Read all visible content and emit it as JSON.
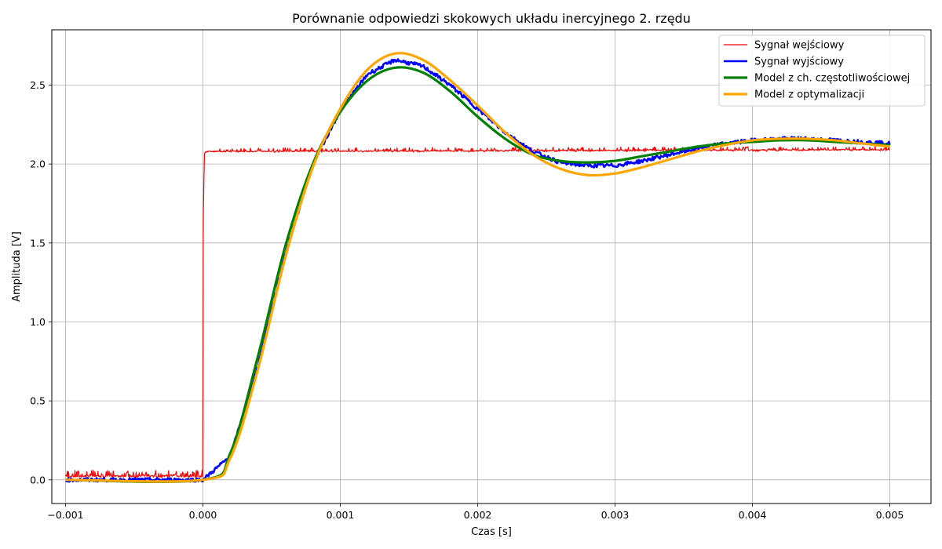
{
  "chart_data": {
    "type": "line",
    "title": "Porównanie odpowiedzi skokowych układu inercyjnego 2. rzędu",
    "xlabel": "Czas [s]",
    "ylabel": "Amplituda [V]",
    "xlim": [
      -0.0011,
      0.0053
    ],
    "ylim": [
      -0.15,
      2.85
    ],
    "xticks": [
      -0.001,
      0.0,
      0.001,
      0.002,
      0.003,
      0.004,
      0.005
    ],
    "xtick_labels": [
      "−0.001",
      "0.000",
      "0.001",
      "0.002",
      "0.003",
      "0.004",
      "0.005"
    ],
    "yticks": [
      0.0,
      0.5,
      1.0,
      1.5,
      2.0,
      2.5
    ],
    "ytick_labels": [
      "0.0",
      "0.5",
      "1.0",
      "1.5",
      "2.0",
      "2.5"
    ],
    "grid": true,
    "legend_position": "top-right",
    "series": [
      {
        "name": "Sygnał wejściowy",
        "color": "#ff0000",
        "x": [
          -0.001,
          -1e-05,
          0.0,
          1e-05,
          3e-05,
          0.005
        ],
        "y": [
          0.02,
          0.02,
          1.5,
          2.06,
          2.08,
          2.09
        ],
        "noise_note": "input steps from ~0.02 V to ~2.09 V at t = 0"
      },
      {
        "name": "Sygnał wyjściowy",
        "color": "#0000ff",
        "x": [
          -0.001,
          0.0,
          0.0002,
          0.0004,
          0.0006,
          0.0008,
          0.001,
          0.0012,
          0.0014,
          0.0016,
          0.0018,
          0.002,
          0.0022,
          0.0024,
          0.0026,
          0.0028,
          0.003,
          0.0032,
          0.0034,
          0.0036,
          0.0038,
          0.004,
          0.0042,
          0.0044,
          0.0046,
          0.0048,
          0.005
        ],
        "y": [
          0.0,
          0.0,
          0.15,
          0.72,
          1.43,
          2.0,
          2.34,
          2.57,
          2.66,
          2.62,
          2.5,
          2.35,
          2.2,
          2.08,
          2.01,
          1.99,
          1.99,
          2.02,
          2.06,
          2.1,
          2.13,
          2.15,
          2.16,
          2.16,
          2.15,
          2.14,
          2.13
        ]
      },
      {
        "name": "Model z ch. częstotliwościowej",
        "color": "#008000",
        "x": [
          -0.001,
          0.0,
          0.0002,
          0.0004,
          0.0006,
          0.0008,
          0.001,
          0.0012,
          0.0014,
          0.0016,
          0.0018,
          0.002,
          0.0022,
          0.0024,
          0.0026,
          0.0028,
          0.003,
          0.0032,
          0.0034,
          0.0036,
          0.0038,
          0.004,
          0.0042,
          0.0044,
          0.0046,
          0.0048,
          0.005
        ],
        "y": [
          0.0,
          0.0,
          0.17,
          0.78,
          1.48,
          2.0,
          2.33,
          2.53,
          2.61,
          2.58,
          2.46,
          2.3,
          2.16,
          2.06,
          2.02,
          2.01,
          2.02,
          2.05,
          2.08,
          2.11,
          2.13,
          2.14,
          2.15,
          2.15,
          2.14,
          2.13,
          2.12
        ]
      },
      {
        "name": "Model z optymalizacji",
        "color": "#ffa500",
        "x": [
          -0.001,
          0.0,
          0.0002,
          0.0004,
          0.0006,
          0.0008,
          0.001,
          0.0012,
          0.0014,
          0.0016,
          0.0018,
          0.002,
          0.0022,
          0.0024,
          0.0026,
          0.0028,
          0.003,
          0.0032,
          0.0034,
          0.0036,
          0.0038,
          0.004,
          0.0042,
          0.0044,
          0.0046,
          0.0048,
          0.005
        ],
        "y": [
          0.0,
          0.0,
          0.14,
          0.7,
          1.41,
          1.98,
          2.35,
          2.6,
          2.7,
          2.66,
          2.53,
          2.37,
          2.2,
          2.06,
          1.97,
          1.93,
          1.94,
          1.98,
          2.03,
          2.08,
          2.12,
          2.15,
          2.16,
          2.16,
          2.15,
          2.13,
          2.11
        ]
      }
    ]
  }
}
